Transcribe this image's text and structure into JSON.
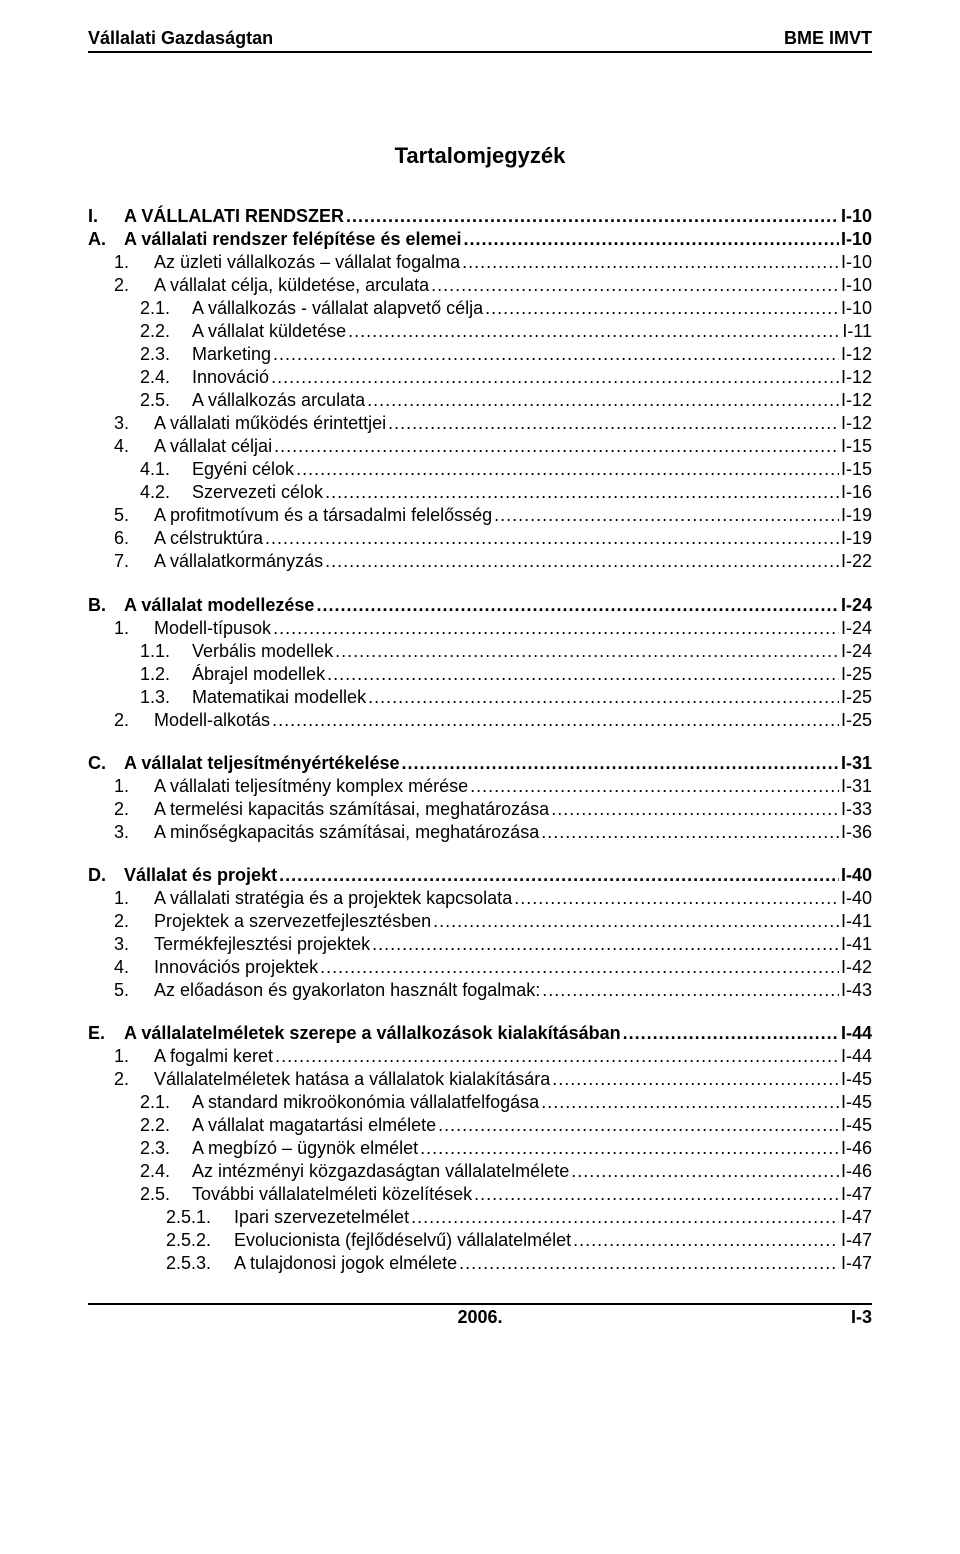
{
  "header": {
    "left": "Vállalati Gazdaságtan",
    "right": "BME IMVT"
  },
  "title": "Tartalomjegyzék",
  "footer": {
    "year": "2006.",
    "page": "I-3"
  },
  "toc": [
    [
      {
        "num": "I.",
        "text": "A VÁLLALATI RENDSZER",
        "page": "I-10",
        "indent": 0,
        "bold": true
      },
      {
        "num": "A.",
        "text": "A vállalati rendszer felépítése és elemei",
        "page": "I-10",
        "indent": 0,
        "bold": true
      },
      {
        "num": "1.",
        "text": "Az üzleti vállalkozás – vállalat fogalma",
        "page": "I-10",
        "indent": 1
      },
      {
        "num": "2.",
        "text": "A vállalat célja, küldetése, arculata",
        "page": "I-10",
        "indent": 1
      },
      {
        "num": "2.1.",
        "text": "A vállalkozás - vállalat alapvető célja",
        "page": "I-10",
        "indent": 2
      },
      {
        "num": "2.2.",
        "text": "A vállalat küldetése",
        "page": "I-11",
        "indent": 2
      },
      {
        "num": "2.3.",
        "text": "Marketing",
        "page": "I-12",
        "indent": 2
      },
      {
        "num": "2.4.",
        "text": "Innováció",
        "page": "I-12",
        "indent": 2
      },
      {
        "num": "2.5.",
        "text": "A vállalkozás arculata",
        "page": "I-12",
        "indent": 2
      },
      {
        "num": "3.",
        "text": "A vállalati működés érintettjei",
        "page": "I-12",
        "indent": 1
      },
      {
        "num": "4.",
        "text": "A vállalat céljai",
        "page": "I-15",
        "indent": 1
      },
      {
        "num": "4.1.",
        "text": "Egyéni célok",
        "page": "I-15",
        "indent": 2
      },
      {
        "num": "4.2.",
        "text": "Szervezeti célok",
        "page": "I-16",
        "indent": 2
      },
      {
        "num": "5.",
        "text": "A profitmotívum és a társadalmi felelősség",
        "page": "I-19",
        "indent": 1
      },
      {
        "num": "6.",
        "text": "A célstruktúra",
        "page": "I-19",
        "indent": 1
      },
      {
        "num": "7.",
        "text": "A vállalatkormányzás",
        "page": "I-22",
        "indent": 1
      }
    ],
    [
      {
        "num": "B.",
        "text": "A vállalat modellezése",
        "page": "I-24",
        "indent": 0,
        "bold": true
      },
      {
        "num": "1.",
        "text": "Modell-típusok",
        "page": "I-24",
        "indent": 1
      },
      {
        "num": "1.1.",
        "text": "Verbális modellek",
        "page": "I-24",
        "indent": 2
      },
      {
        "num": "1.2.",
        "text": "Ábrajel modellek",
        "page": "I-25",
        "indent": 2
      },
      {
        "num": "1.3.",
        "text": "Matematikai modellek",
        "page": "I-25",
        "indent": 2
      },
      {
        "num": "2.",
        "text": "Modell-alkotás",
        "page": "I-25",
        "indent": 1
      }
    ],
    [
      {
        "num": "C.",
        "text": "A vállalat teljesítményértékelése",
        "page": "I-31",
        "indent": 0,
        "bold": true
      },
      {
        "num": "1.",
        "text": "A vállalati teljesítmény komplex mérése",
        "page": "I-31",
        "indent": 1
      },
      {
        "num": "2.",
        "text": "A termelési kapacitás számításai, meghatározása",
        "page": "I-33",
        "indent": 1
      },
      {
        "num": "3.",
        "text": "A minőségkapacitás számításai, meghatározása",
        "page": "I-36",
        "indent": 1
      }
    ],
    [
      {
        "num": "D.",
        "text": "Vállalat és projekt",
        "page": "I-40",
        "indent": 0,
        "bold": true
      },
      {
        "num": "1.",
        "text": "A vállalati stratégia és a projektek kapcsolata",
        "page": "I-40",
        "indent": 1
      },
      {
        "num": "2.",
        "text": "Projektek a szervezetfejlesztésben",
        "page": "I-41",
        "indent": 1
      },
      {
        "num": "3.",
        "text": "Termékfejlesztési projektek",
        "page": "I-41",
        "indent": 1
      },
      {
        "num": "4.",
        "text": "Innovációs projektek",
        "page": "I-42",
        "indent": 1
      },
      {
        "num": "5.",
        "text": "Az előadáson és gyakorlaton használt fogalmak:",
        "page": "I-43",
        "indent": 1
      }
    ],
    [
      {
        "num": "E.",
        "text": "A vállalatelméletek szerepe a vállalkozások kialakításában",
        "page": "I-44",
        "indent": 0,
        "bold": true
      },
      {
        "num": "1.",
        "text": "A fogalmi keret",
        "page": "I-44",
        "indent": 1
      },
      {
        "num": "2.",
        "text": "Vállalatelméletek hatása a vállalatok kialakítására",
        "page": "I-45",
        "indent": 1
      },
      {
        "num": "2.1.",
        "text": "A standard mikroökonómia vállalatfelfogása",
        "page": "I-45",
        "indent": 2
      },
      {
        "num": "2.2.",
        "text": "A vállalat magatartási elmélete",
        "page": "I-45",
        "indent": 2
      },
      {
        "num": "2.3.",
        "text": "A megbízó – ügynök elmélet",
        "page": "I-46",
        "indent": 2
      },
      {
        "num": "2.4.",
        "text": "Az intézményi közgazdaságtan vállalatelmélete",
        "page": "I-46",
        "indent": 2
      },
      {
        "num": "2.5.",
        "text": "További vállalatelméleti közelítések",
        "page": "I-47",
        "indent": 2
      },
      {
        "num": "2.5.1.",
        "text": "Ipari szervezetelmélet",
        "page": "I-47",
        "indent": 3
      },
      {
        "num": "2.5.2.",
        "text": "Evolucionista (fejlődéselvű) vállalatelmélet",
        "page": "I-47",
        "indent": 3
      },
      {
        "num": "2.5.3.",
        "text": "A tulajdonosi jogok elmélete",
        "page": "I-47",
        "indent": 3
      }
    ]
  ]
}
